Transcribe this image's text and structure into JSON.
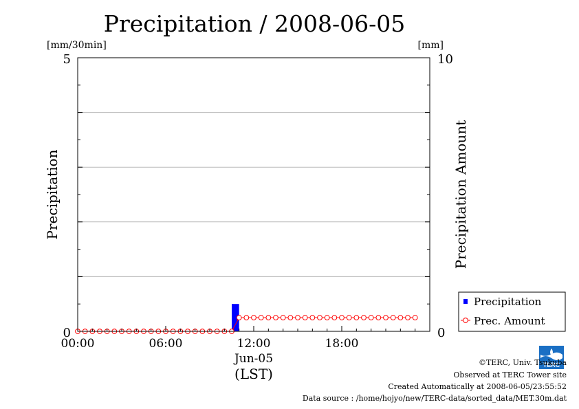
{
  "chart_data": {
    "type": "bar+line",
    "title": "Precipitation / 2008-06-05",
    "ylabel": "Precipitation",
    "ylabel_right": "Precipitation Amount",
    "yunit_left": "[mm/30min]",
    "yunit_right": "[mm]",
    "ylim": [
      0,
      5
    ],
    "ylim_right": [
      0,
      10
    ],
    "y_ticks_left": [
      "0",
      "5"
    ],
    "y_ticks_right": [
      "0",
      "10"
    ],
    "xlim": [
      0,
      24
    ],
    "x_ticks": [
      {
        "hour": 0,
        "label": "00:00"
      },
      {
        "hour": 6,
        "label": "06:00"
      },
      {
        "hour": 12,
        "label": "12:00"
      },
      {
        "hour": 18,
        "label": "18:00"
      }
    ],
    "x_date_label": "Jun-05",
    "x_axis_label": "(LST)",
    "grid": "horizontal",
    "legend_position": "bottom-right",
    "series": [
      {
        "name": "Precipitation",
        "type": "bar",
        "axis": "left",
        "color": "#0000ff",
        "start_hours": [
          10.5
        ],
        "values": [
          0.5
        ]
      },
      {
        "name": "Prec. Amount",
        "type": "line",
        "axis": "right",
        "color": "#ff0000",
        "marker": "open-circle",
        "x_hours": [
          0,
          0.5,
          1,
          1.5,
          2,
          2.5,
          3,
          3.5,
          4,
          4.5,
          5,
          5.5,
          6,
          6.5,
          7,
          7.5,
          8,
          8.5,
          9,
          9.5,
          10,
          10.5,
          11,
          11.5,
          12,
          12.5,
          13,
          13.5,
          14,
          14.5,
          15,
          15.5,
          16,
          16.5,
          17,
          17.5,
          18,
          18.5,
          19,
          19.5,
          20,
          20.5,
          21,
          21.5,
          22,
          22.5,
          23
        ],
        "values": [
          0,
          0,
          0,
          0,
          0,
          0,
          0,
          0,
          0,
          0,
          0,
          0,
          0,
          0,
          0,
          0,
          0,
          0,
          0,
          0,
          0,
          0,
          0.5,
          0.5,
          0.5,
          0.5,
          0.5,
          0.5,
          0.5,
          0.5,
          0.5,
          0.5,
          0.5,
          0.5,
          0.5,
          0.5,
          0.5,
          0.5,
          0.5,
          0.5,
          0.5,
          0.5,
          0.5,
          0.5,
          0.5,
          0.5,
          0.5
        ]
      }
    ]
  },
  "footer": {
    "copyright": "©TERC, Univ. Tsukuba",
    "observed": "Observed at TERC Tower site",
    "created": "Created Automatically at 2008-06-05/23:55:52",
    "source": "Data source : /home/hojyo/new/TERC-data/sorted_data/MET.30m.dat"
  },
  "logo": {
    "text": "TERC",
    "color": "#1a6fc4"
  }
}
